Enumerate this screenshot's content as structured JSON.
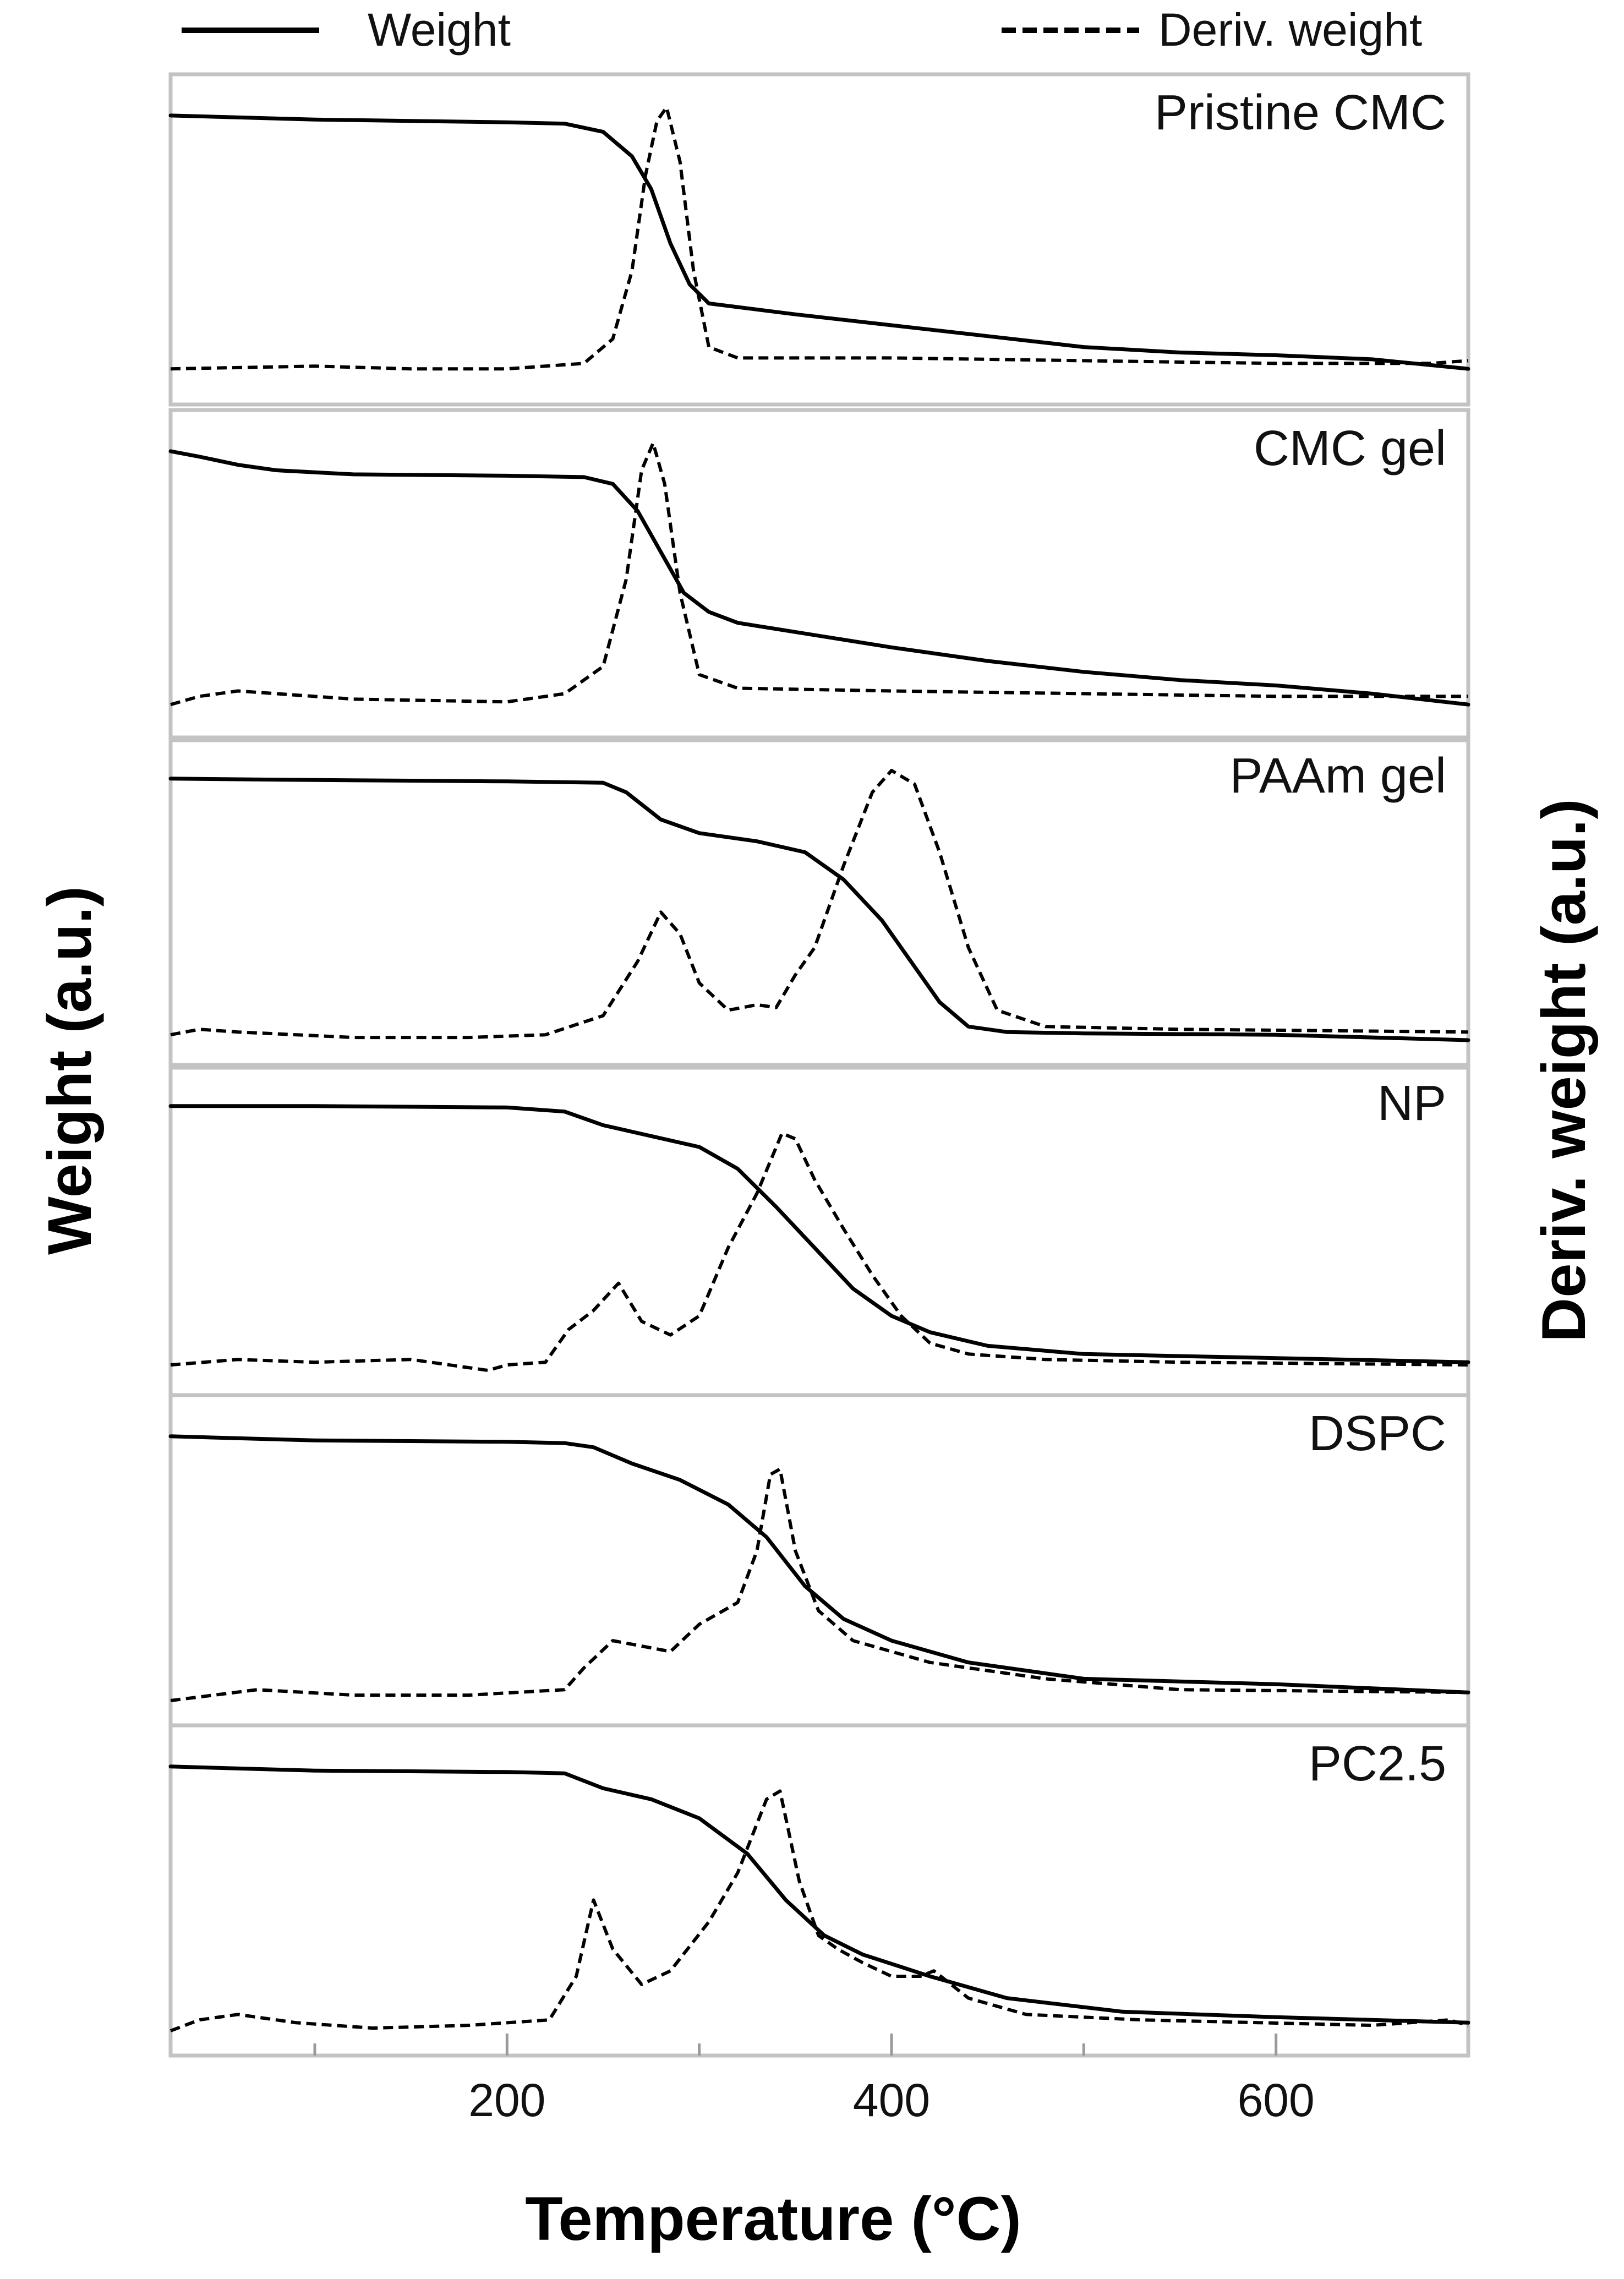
{
  "chart_data": {
    "type": "line",
    "xlabel": "Temperature (°C)",
    "ylabel_left": "Weight (a.u.)",
    "ylabel_right": "Deriv. weight (a.u.)",
    "xlim": [
      25,
      700
    ],
    "x_ticks": [
      200,
      400,
      600
    ],
    "x_minor_ticks": [
      100,
      300,
      500
    ],
    "legend": [
      {
        "name": "Weight",
        "style": "solid"
      },
      {
        "name": "Deriv. weight",
        "style": "dashed"
      }
    ],
    "legend_position": "top",
    "panels": [
      {
        "label": "Pristine CMC",
        "weight": [
          [
            25,
            0.97
          ],
          [
            100,
            0.955
          ],
          [
            200,
            0.945
          ],
          [
            230,
            0.94
          ],
          [
            250,
            0.91
          ],
          [
            265,
            0.82
          ],
          [
            275,
            0.7
          ],
          [
            285,
            0.5
          ],
          [
            295,
            0.35
          ],
          [
            305,
            0.28
          ],
          [
            350,
            0.24
          ],
          [
            400,
            0.2
          ],
          [
            450,
            0.16
          ],
          [
            500,
            0.12
          ],
          [
            550,
            0.1
          ],
          [
            600,
            0.09
          ],
          [
            650,
            0.075
          ],
          [
            700,
            0.04
          ]
        ],
        "deriv": [
          [
            25,
            0.04
          ],
          [
            100,
            0.05
          ],
          [
            150,
            0.04
          ],
          [
            200,
            0.04
          ],
          [
            240,
            0.06
          ],
          [
            255,
            0.15
          ],
          [
            265,
            0.4
          ],
          [
            272,
            0.75
          ],
          [
            278,
            0.95
          ],
          [
            283,
            1.0
          ],
          [
            290,
            0.8
          ],
          [
            297,
            0.4
          ],
          [
            305,
            0.12
          ],
          [
            320,
            0.08
          ],
          [
            400,
            0.08
          ],
          [
            500,
            0.07
          ],
          [
            600,
            0.06
          ],
          [
            680,
            0.06
          ],
          [
            700,
            0.07
          ]
        ]
      },
      {
        "label": "CMC gel",
        "weight": [
          [
            25,
            0.97
          ],
          [
            40,
            0.95
          ],
          [
            60,
            0.92
          ],
          [
            80,
            0.9
          ],
          [
            120,
            0.885
          ],
          [
            200,
            0.88
          ],
          [
            240,
            0.875
          ],
          [
            255,
            0.85
          ],
          [
            268,
            0.75
          ],
          [
            280,
            0.6
          ],
          [
            292,
            0.45
          ],
          [
            305,
            0.38
          ],
          [
            320,
            0.34
          ],
          [
            400,
            0.25
          ],
          [
            450,
            0.2
          ],
          [
            500,
            0.16
          ],
          [
            550,
            0.13
          ],
          [
            600,
            0.11
          ],
          [
            650,
            0.08
          ],
          [
            700,
            0.04
          ]
        ],
        "deriv": [
          [
            25,
            0.04
          ],
          [
            40,
            0.07
          ],
          [
            60,
            0.09
          ],
          [
            80,
            0.08
          ],
          [
            120,
            0.06
          ],
          [
            200,
            0.05
          ],
          [
            230,
            0.08
          ],
          [
            250,
            0.18
          ],
          [
            262,
            0.5
          ],
          [
            270,
            0.9
          ],
          [
            276,
            1.0
          ],
          [
            282,
            0.85
          ],
          [
            290,
            0.45
          ],
          [
            300,
            0.15
          ],
          [
            320,
            0.1
          ],
          [
            400,
            0.09
          ],
          [
            500,
            0.08
          ],
          [
            600,
            0.07
          ],
          [
            700,
            0.07
          ]
        ]
      },
      {
        "label": "PAAm gel",
        "weight": [
          [
            25,
            0.97
          ],
          [
            100,
            0.965
          ],
          [
            200,
            0.96
          ],
          [
            250,
            0.955
          ],
          [
            262,
            0.92
          ],
          [
            280,
            0.82
          ],
          [
            300,
            0.77
          ],
          [
            330,
            0.74
          ],
          [
            355,
            0.7
          ],
          [
            375,
            0.6
          ],
          [
            395,
            0.45
          ],
          [
            410,
            0.3
          ],
          [
            425,
            0.15
          ],
          [
            440,
            0.06
          ],
          [
            460,
            0.04
          ],
          [
            500,
            0.035
          ],
          [
            600,
            0.03
          ],
          [
            700,
            0.01
          ]
        ],
        "deriv": [
          [
            25,
            0.03
          ],
          [
            40,
            0.05
          ],
          [
            60,
            0.04
          ],
          [
            120,
            0.02
          ],
          [
            180,
            0.02
          ],
          [
            220,
            0.03
          ],
          [
            250,
            0.1
          ],
          [
            268,
            0.3
          ],
          [
            280,
            0.48
          ],
          [
            290,
            0.4
          ],
          [
            300,
            0.22
          ],
          [
            315,
            0.12
          ],
          [
            330,
            0.14
          ],
          [
            340,
            0.13
          ],
          [
            350,
            0.25
          ],
          [
            360,
            0.35
          ],
          [
            375,
            0.65
          ],
          [
            390,
            0.92
          ],
          [
            400,
            1.0
          ],
          [
            412,
            0.95
          ],
          [
            425,
            0.7
          ],
          [
            440,
            0.35
          ],
          [
            455,
            0.12
          ],
          [
            480,
            0.06
          ],
          [
            550,
            0.05
          ],
          [
            700,
            0.04
          ]
        ]
      },
      {
        "label": "NP",
        "weight": [
          [
            25,
            0.97
          ],
          [
            100,
            0.97
          ],
          [
            200,
            0.965
          ],
          [
            230,
            0.95
          ],
          [
            250,
            0.9
          ],
          [
            275,
            0.86
          ],
          [
            300,
            0.82
          ],
          [
            320,
            0.74
          ],
          [
            340,
            0.6
          ],
          [
            360,
            0.45
          ],
          [
            380,
            0.3
          ],
          [
            400,
            0.2
          ],
          [
            420,
            0.14
          ],
          [
            450,
            0.09
          ],
          [
            500,
            0.06
          ],
          [
            600,
            0.045
          ],
          [
            700,
            0.03
          ]
        ],
        "deriv": [
          [
            25,
            0.02
          ],
          [
            60,
            0.04
          ],
          [
            100,
            0.03
          ],
          [
            150,
            0.04
          ],
          [
            190,
            0.0
          ],
          [
            200,
            0.02
          ],
          [
            220,
            0.03
          ],
          [
            232,
            0.15
          ],
          [
            245,
            0.22
          ],
          [
            258,
            0.32
          ],
          [
            270,
            0.18
          ],
          [
            285,
            0.13
          ],
          [
            300,
            0.2
          ],
          [
            315,
            0.45
          ],
          [
            330,
            0.65
          ],
          [
            343,
            0.87
          ],
          [
            350,
            0.85
          ],
          [
            360,
            0.7
          ],
          [
            375,
            0.52
          ],
          [
            390,
            0.35
          ],
          [
            405,
            0.2
          ],
          [
            420,
            0.1
          ],
          [
            440,
            0.06
          ],
          [
            480,
            0.04
          ],
          [
            550,
            0.03
          ],
          [
            700,
            0.02
          ]
        ]
      },
      {
        "label": "DSPC",
        "weight": [
          [
            25,
            0.97
          ],
          [
            100,
            0.955
          ],
          [
            200,
            0.95
          ],
          [
            230,
            0.945
          ],
          [
            245,
            0.93
          ],
          [
            265,
            0.87
          ],
          [
            290,
            0.81
          ],
          [
            315,
            0.72
          ],
          [
            335,
            0.6
          ],
          [
            355,
            0.42
          ],
          [
            375,
            0.3
          ],
          [
            400,
            0.22
          ],
          [
            440,
            0.14
          ],
          [
            500,
            0.08
          ],
          [
            600,
            0.06
          ],
          [
            700,
            0.03
          ]
        ],
        "deriv": [
          [
            25,
            0.0
          ],
          [
            70,
            0.04
          ],
          [
            120,
            0.02
          ],
          [
            180,
            0.02
          ],
          [
            230,
            0.04
          ],
          [
            240,
            0.12
          ],
          [
            255,
            0.22
          ],
          [
            270,
            0.2
          ],
          [
            285,
            0.18
          ],
          [
            300,
            0.28
          ],
          [
            320,
            0.36
          ],
          [
            330,
            0.55
          ],
          [
            337,
            0.83
          ],
          [
            342,
            0.85
          ],
          [
            350,
            0.55
          ],
          [
            362,
            0.33
          ],
          [
            380,
            0.22
          ],
          [
            420,
            0.14
          ],
          [
            480,
            0.08
          ],
          [
            550,
            0.04
          ],
          [
            700,
            0.03
          ]
        ]
      },
      {
        "label": "PC2.5",
        "weight": [
          [
            25,
            0.97
          ],
          [
            100,
            0.955
          ],
          [
            200,
            0.95
          ],
          [
            230,
            0.945
          ],
          [
            250,
            0.89
          ],
          [
            275,
            0.85
          ],
          [
            300,
            0.78
          ],
          [
            325,
            0.65
          ],
          [
            345,
            0.48
          ],
          [
            365,
            0.35
          ],
          [
            385,
            0.28
          ],
          [
            420,
            0.2
          ],
          [
            460,
            0.12
          ],
          [
            520,
            0.07
          ],
          [
            600,
            0.05
          ],
          [
            700,
            0.03
          ]
        ],
        "deriv": [
          [
            25,
            0.0
          ],
          [
            40,
            0.04
          ],
          [
            60,
            0.06
          ],
          [
            90,
            0.03
          ],
          [
            130,
            0.01
          ],
          [
            180,
            0.02
          ],
          [
            222,
            0.04
          ],
          [
            236,
            0.2
          ],
          [
            245,
            0.48
          ],
          [
            255,
            0.3
          ],
          [
            270,
            0.17
          ],
          [
            285,
            0.22
          ],
          [
            305,
            0.4
          ],
          [
            320,
            0.58
          ],
          [
            335,
            0.85
          ],
          [
            342,
            0.88
          ],
          [
            352,
            0.55
          ],
          [
            362,
            0.35
          ],
          [
            372,
            0.3
          ],
          [
            385,
            0.25
          ],
          [
            400,
            0.2
          ],
          [
            415,
            0.2
          ],
          [
            422,
            0.22
          ],
          [
            440,
            0.12
          ],
          [
            470,
            0.06
          ],
          [
            530,
            0.04
          ],
          [
            650,
            0.02
          ],
          [
            690,
            0.04
          ],
          [
            700,
            0.02
          ]
        ]
      }
    ]
  }
}
